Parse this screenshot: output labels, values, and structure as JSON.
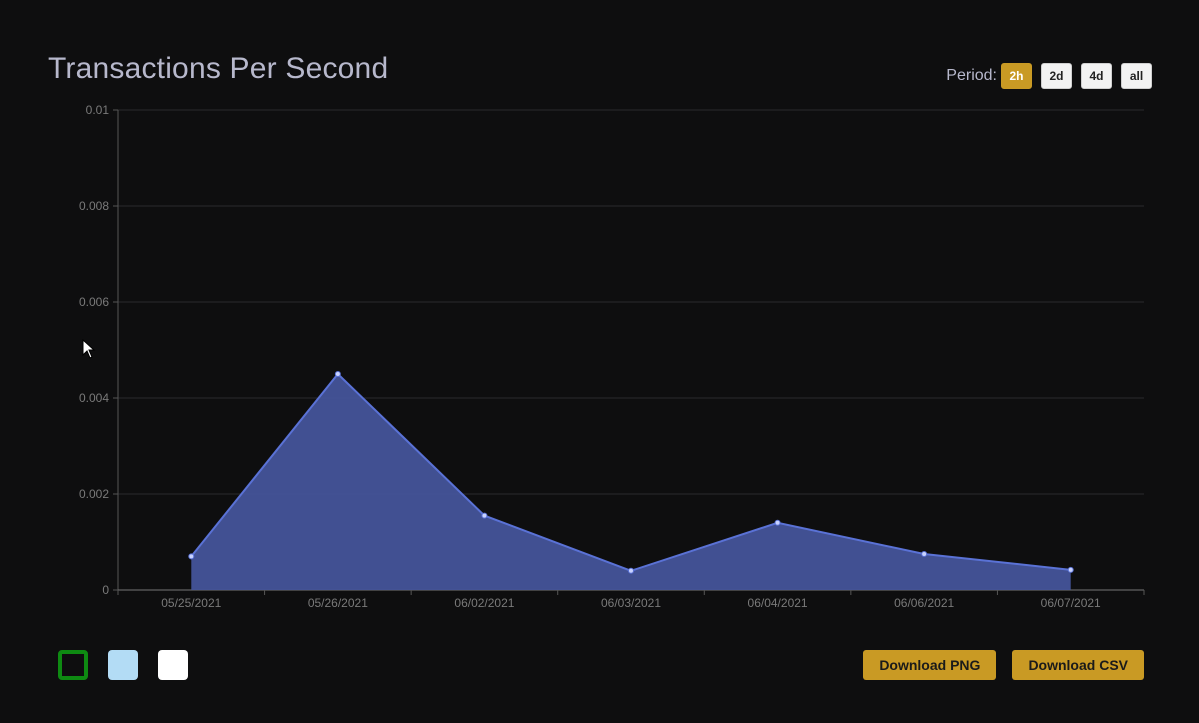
{
  "title": "Transactions Per Second",
  "period": {
    "label": "Period:",
    "options": [
      "2h",
      "2d",
      "4d",
      "all"
    ],
    "selected": "2h"
  },
  "swatches": [
    {
      "name": "green-swatch",
      "color": "#0e8a12",
      "style": "outline"
    },
    {
      "name": "light-blue-swatch",
      "color": "#b3dcf5",
      "style": "fill"
    },
    {
      "name": "white-swatch",
      "color": "#ffffff",
      "style": "fill"
    }
  ],
  "buttons": {
    "download_png": "Download PNG",
    "download_csv": "Download CSV"
  },
  "colors": {
    "accent": "#c99a24",
    "series_fill": "#44549a",
    "series_line": "#5a72d6"
  },
  "chart_data": {
    "type": "area",
    "categories": [
      "05/25/2021",
      "05/26/2021",
      "06/02/2021",
      "06/03/2021",
      "06/04/2021",
      "06/06/2021",
      "06/07/2021"
    ],
    "series": [
      {
        "values": [
          0.0007,
          0.0045,
          0.00155,
          0.0004,
          0.0014,
          0.00075,
          0.00042
        ]
      }
    ],
    "y_ticks": [
      "0",
      "0.002",
      "0.004",
      "0.006",
      "0.008",
      "0.01"
    ],
    "ylim": [
      0,
      0.01
    ],
    "grid": true
  }
}
